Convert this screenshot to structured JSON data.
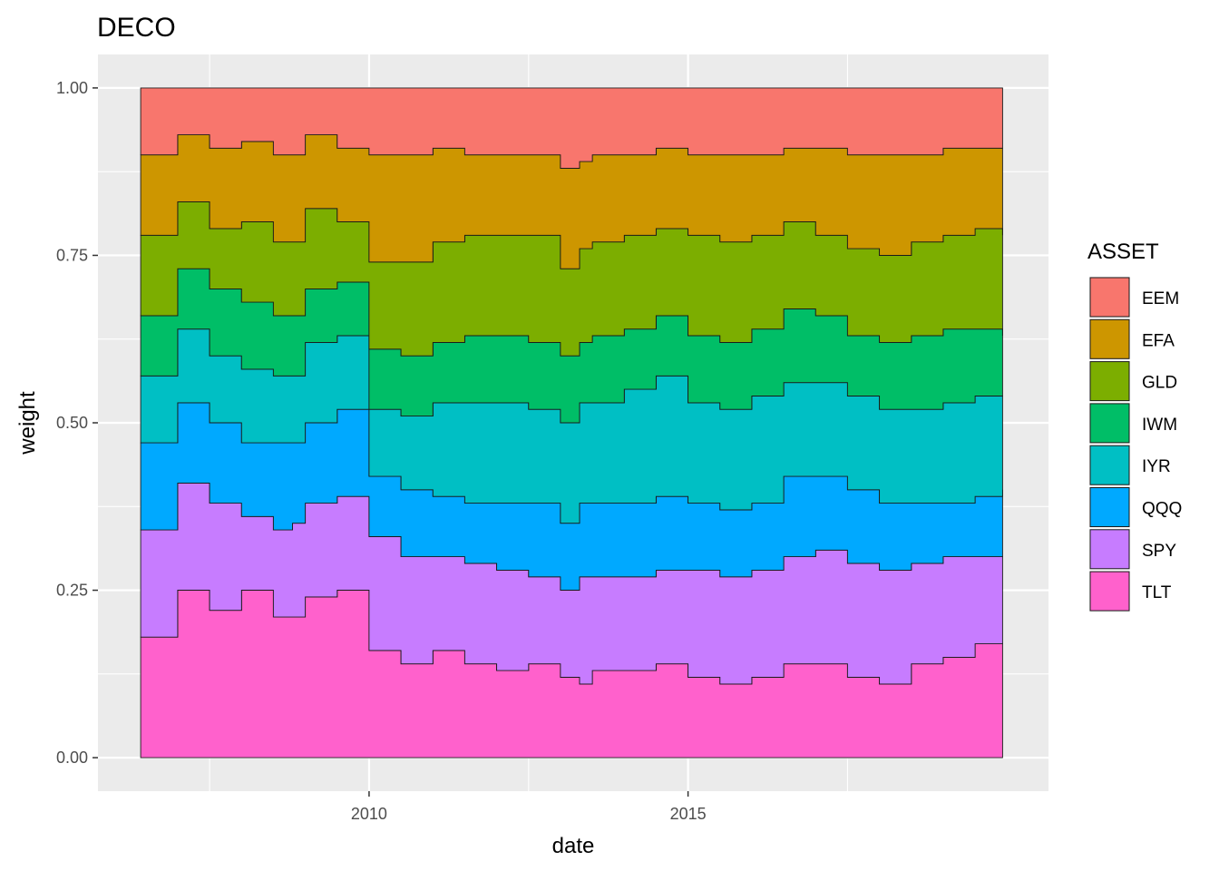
{
  "chart_data": {
    "type": "area",
    "title": "DECO",
    "xlabel": "date",
    "ylabel": "weight",
    "xlim": [
      2005.75,
      2020.65
    ],
    "ylim": [
      -0.05,
      1.05
    ],
    "x_ticks": [
      2010,
      2015
    ],
    "x_tick_labels": [
      "2010",
      "2015"
    ],
    "y_ticks": [
      0,
      0.25,
      0.5,
      0.75,
      1
    ],
    "y_tick_labels": [
      "0.00",
      "0.25",
      "0.50",
      "0.75",
      "1.00"
    ],
    "stacked": true,
    "step": true,
    "grid": true,
    "legend_title": "ASSET",
    "legend_position": "right",
    "series_order_bottom_to_top": [
      "TLT",
      "SPY",
      "QQQ",
      "IYR",
      "IWM",
      "GLD",
      "EFA",
      "EEM"
    ],
    "series": [
      {
        "name": "EEM",
        "color": "#F8766D"
      },
      {
        "name": "EFA",
        "color": "#CD9600"
      },
      {
        "name": "GLD",
        "color": "#7CAE00"
      },
      {
        "name": "IWM",
        "color": "#00BE67"
      },
      {
        "name": "IYR",
        "color": "#00BFC4"
      },
      {
        "name": "QQQ",
        "color": "#00A9FF"
      },
      {
        "name": "SPY",
        "color": "#C77CFF"
      },
      {
        "name": "TLT",
        "color": "#FF61CC"
      }
    ],
    "cumulative_boundaries": {
      "x": [
        2006.42,
        2007.0,
        2007.5,
        2008.0,
        2008.5,
        2008.8,
        2009.0,
        2009.5,
        2010.0,
        2010.5,
        2011.0,
        2011.5,
        2012.0,
        2012.5,
        2013.0,
        2013.3,
        2013.5,
        2014.0,
        2014.5,
        2015.0,
        2015.5,
        2016.0,
        2016.5,
        2017.0,
        2017.5,
        2018.0,
        2018.5,
        2019.0,
        2019.5,
        2019.93
      ],
      "TLT": [
        0.18,
        0.25,
        0.22,
        0.25,
        0.21,
        0.21,
        0.24,
        0.25,
        0.16,
        0.14,
        0.16,
        0.14,
        0.13,
        0.14,
        0.12,
        0.11,
        0.13,
        0.13,
        0.14,
        0.12,
        0.11,
        0.12,
        0.14,
        0.14,
        0.12,
        0.11,
        0.14,
        0.15,
        0.17,
        0.17
      ],
      "SPY": [
        0.34,
        0.41,
        0.38,
        0.36,
        0.34,
        0.35,
        0.38,
        0.39,
        0.33,
        0.3,
        0.3,
        0.29,
        0.28,
        0.27,
        0.25,
        0.27,
        0.27,
        0.27,
        0.28,
        0.28,
        0.27,
        0.28,
        0.3,
        0.31,
        0.29,
        0.28,
        0.29,
        0.3,
        0.3,
        0.3
      ],
      "QQQ": [
        0.47,
        0.53,
        0.5,
        0.47,
        0.47,
        0.47,
        0.5,
        0.52,
        0.42,
        0.4,
        0.39,
        0.38,
        0.38,
        0.38,
        0.35,
        0.38,
        0.38,
        0.38,
        0.39,
        0.38,
        0.37,
        0.38,
        0.42,
        0.42,
        0.4,
        0.38,
        0.38,
        0.38,
        0.39,
        0.4
      ],
      "IYR": [
        0.57,
        0.64,
        0.6,
        0.58,
        0.57,
        0.57,
        0.62,
        0.63,
        0.52,
        0.51,
        0.53,
        0.53,
        0.53,
        0.52,
        0.5,
        0.53,
        0.53,
        0.55,
        0.57,
        0.53,
        0.52,
        0.54,
        0.56,
        0.56,
        0.54,
        0.52,
        0.52,
        0.53,
        0.54,
        0.54
      ],
      "IWM": [
        0.66,
        0.73,
        0.7,
        0.68,
        0.66,
        0.66,
        0.7,
        0.71,
        0.61,
        0.6,
        0.62,
        0.63,
        0.63,
        0.62,
        0.6,
        0.62,
        0.63,
        0.64,
        0.66,
        0.63,
        0.62,
        0.64,
        0.67,
        0.66,
        0.63,
        0.62,
        0.63,
        0.64,
        0.64,
        0.63
      ],
      "GLD": [
        0.78,
        0.83,
        0.79,
        0.8,
        0.77,
        0.77,
        0.82,
        0.8,
        0.74,
        0.74,
        0.77,
        0.78,
        0.78,
        0.78,
        0.73,
        0.76,
        0.77,
        0.78,
        0.79,
        0.78,
        0.77,
        0.78,
        0.8,
        0.78,
        0.76,
        0.75,
        0.77,
        0.78,
        0.79,
        0.78
      ],
      "EFA": [
        0.9,
        0.93,
        0.91,
        0.92,
        0.9,
        0.9,
        0.93,
        0.91,
        0.9,
        0.9,
        0.91,
        0.9,
        0.9,
        0.9,
        0.88,
        0.89,
        0.9,
        0.9,
        0.91,
        0.9,
        0.9,
        0.9,
        0.91,
        0.91,
        0.9,
        0.9,
        0.9,
        0.91,
        0.91,
        0.91
      ],
      "EEM": [
        1.0,
        1.0,
        1.0,
        1.0,
        1.0,
        1.0,
        1.0,
        1.0,
        1.0,
        1.0,
        1.0,
        1.0,
        1.0,
        1.0,
        1.0,
        1.0,
        1.0,
        1.0,
        1.0,
        1.0,
        1.0,
        1.0,
        1.0,
        1.0,
        1.0,
        1.0,
        1.0,
        1.0,
        1.0,
        1.0
      ]
    }
  }
}
